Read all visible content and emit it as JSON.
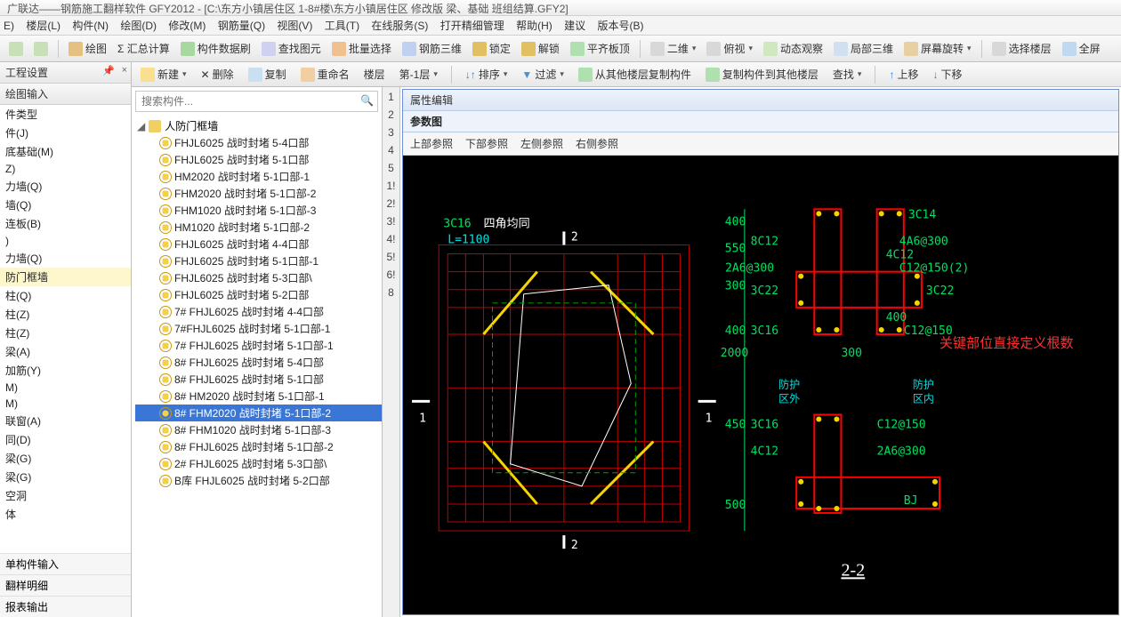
{
  "title": "广联达——钢筋施工翻样软件 GFY2012 - [C:\\东方小镇居住区 1-8#楼\\东方小镇居住区 修改版 梁、基础 班组结算.GFY2]",
  "menu": [
    "E)",
    "楼层(L)",
    "构件(N)",
    "绘图(D)",
    "修改(M)",
    "钢筋量(Q)",
    "视图(V)",
    "工具(T)",
    "在线服务(S)",
    "打开精细管理",
    "帮助(H)",
    "建议",
    "版本号(B)"
  ],
  "tb1": {
    "drawing": "绘图",
    "sum": "Σ 汇总计算",
    "refresh": "构件数据刷",
    "find": "查找图元",
    "batch": "批量选择",
    "rebar3d": "钢筋三维",
    "lock": "锁定",
    "unlock": "解锁",
    "align": "平齐板顶",
    "view2d": "二维",
    "overlook": "俯视",
    "dynview": "动态观察",
    "local3d": "局部三维",
    "screenrot": "屏幕旋转",
    "sellayer": "选择楼层",
    "fullscreen": "全屏"
  },
  "left": {
    "title1": "工程设置",
    "title2": "绘图输入",
    "items": [
      "件类型",
      "件(J)",
      "底基础(M)",
      "Z)",
      "力墙(Q)",
      "墙(Q)",
      "连板(B)",
      ")",
      "力墙(Q)",
      "防门框墙",
      "柱(Q)",
      "柱(Z)",
      "柱(Z)",
      "梁(A)",
      "加筋(Y)",
      "M)",
      "M)",
      "联窗(A)",
      "同(D)",
      "梁(G)",
      "梁(G)",
      "空洞",
      "体"
    ],
    "sel": 9,
    "bottom": [
      "单构件输入",
      "翻样明细",
      "报表输出"
    ]
  },
  "midtb": {
    "new": "新建",
    "del": "删除",
    "copy": "复制",
    "rename": "重命名",
    "floor": "楼层",
    "floorv": "第-1层",
    "sort": "排序",
    "filter": "过滤",
    "copyfrom": "从其他楼层复制构件",
    "copyto": "复制构件到其他楼层",
    "find": "查找",
    "up": "上移",
    "down": "下移"
  },
  "search_ph": "搜索构件...",
  "tree_root": "人防门框墙",
  "tree": [
    "FHJL6025  战时封堵 5-4口部",
    "FHJL6025  战时封堵 5-1口部",
    "HM2020  战时封堵 5-1口部-1",
    "FHM2020  战时封堵 5-1口部-2",
    "FHM1020  战时封堵 5-1口部-3",
    "HM1020  战时封堵 5-1口部-2",
    "FHJL6025  战时封堵 4-4口部",
    "FHJL6025  战时封堵 5-1口部-1",
    "FHJL6025  战时封堵 5-3口部\\",
    "FHJL6025  战时封堵 5-2口部",
    "7#  FHJL6025  战时封堵 4-4口部",
    "7#FHJL6025  战时封堵 5-1口部-1",
    "7#  FHJL6025  战时封堵 5-1口部-1",
    "8#  FHJL6025  战时封堵 5-4口部",
    "8#  FHJL6025  战时封堵 5-1口部",
    "8#  HM2020  战时封堵 5-1口部-1",
    "8#  FHM2020  战时封堵 5-1口部-2",
    "8#  FHM1020  战时封堵 5-1口部-3",
    "8#  FHJL6025  战时封堵 5-1口部-2",
    "2#  FHJL6025  战时封堵 5-3口部\\",
    "B库  FHJL6025  战时封堵 5-2口部"
  ],
  "tree_sel": 16,
  "prop_strip": [
    "1",
    "2",
    "3",
    "4",
    "5",
    "1!",
    "2!",
    "3!",
    "4!",
    "5!",
    "6!",
    "8"
  ],
  "prop_title": "属性编辑",
  "param_title": "参数图",
  "param_tabs": [
    "上部参照",
    "下部参照",
    "左侧参照",
    "右侧参照"
  ],
  "plan": {
    "corner": "3C16",
    "corner_note": "四角均同",
    "L": "L=1100",
    "marks": [
      "1",
      "2"
    ],
    "dims_left": [
      "400",
      "550",
      "300",
      "400",
      "2000",
      "450",
      "500"
    ],
    "rebar_top": [
      "8C12",
      "2A6@300",
      "3C22",
      "3C16"
    ],
    "rebar_top_r": [
      "3C14",
      "4A6@300",
      "4C12",
      "C12@150(2)",
      "3C22",
      "400",
      "C12@150",
      "300"
    ],
    "zone_out": "防护\n区外",
    "zone_in": "防护\n区内",
    "rebar_bot": [
      "3C16",
      "4C12"
    ],
    "rebar_bot_r": [
      "C12@150",
      "2A6@300",
      "BJ"
    ],
    "section": "2-2",
    "note": "关键部位直接定义根数"
  }
}
